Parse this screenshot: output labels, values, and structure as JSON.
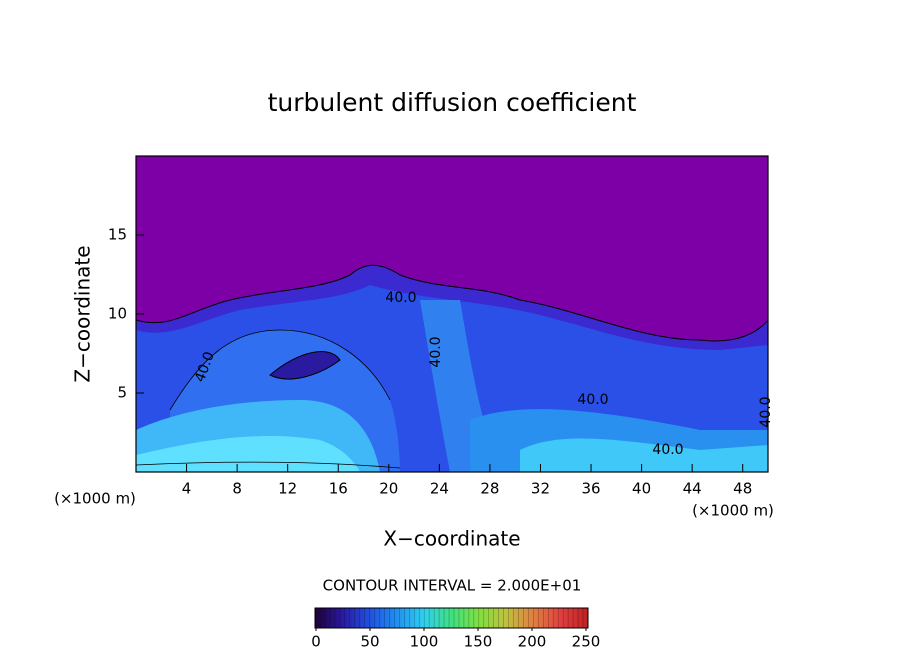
{
  "chart_data": {
    "type": "contour",
    "title": "turbulent diffusion coefficient",
    "xlabel": "X−coordinate",
    "ylabel": "Z−coordinate",
    "x_unit_label": "(×1000 m)",
    "xlim": [
      0,
      50
    ],
    "xticks": [
      4,
      8,
      12,
      16,
      20,
      24,
      28,
      32,
      36,
      40,
      44,
      48
    ],
    "ylim": [
      0,
      20
    ],
    "yticks": [
      5,
      10,
      15
    ],
    "contour_labels": [
      "40.0",
      "40.0",
      "40.0",
      "40.0",
      "40.0",
      "40.0"
    ],
    "contour_interval_label": "CONTOUR INTERVAL = 2.000E+01",
    "colorbar_lim": [
      0,
      250
    ],
    "colorbar_ticks": [
      0,
      50,
      100,
      150,
      200,
      250
    ],
    "colormap": [
      "#20003a",
      "#2a1aa0",
      "#2050e0",
      "#2090f0",
      "#30d0f0",
      "#40e080",
      "#80e040",
      "#c0c040",
      "#e08040",
      "#e04040",
      "#c02020"
    ]
  }
}
